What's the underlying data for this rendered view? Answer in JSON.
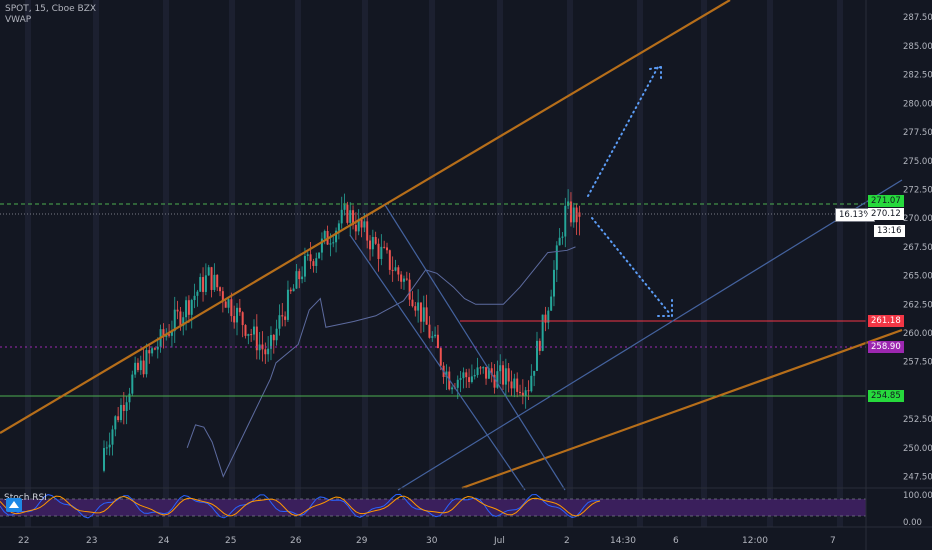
{
  "header": {
    "symbol_line": "SPOT, 15, Cboe BZX",
    "indicator": "VWAP"
  },
  "oscillator": {
    "name": "Stoch RSI",
    "levels": [
      "100.00",
      "0.00"
    ]
  },
  "colors": {
    "background": "#131722",
    "up": "#26a69a",
    "down": "#ef5350",
    "orange_trend": "#b66e1a",
    "blue_trend": "#44629e",
    "green_level": "#4caf50",
    "red_level": "#f23645",
    "purple_level": "#9c27b0"
  },
  "price_axis": {
    "ticks": [
      "287.50",
      "285.00",
      "282.50",
      "280.00",
      "277.50",
      "275.00",
      "272.50",
      "270.00",
      "267.50",
      "265.00",
      "262.50",
      "260.00",
      "257.50",
      "252.50",
      "250.00",
      "247.50"
    ]
  },
  "price_tags": {
    "high": "271.07",
    "last": "270.12",
    "last_pct": "16.13%",
    "countdown": "13:16",
    "resistance": "261.18",
    "vwap_level": "258.90",
    "support": "254.85"
  },
  "time_axis": {
    "labels": [
      "22",
      "23",
      "24",
      "25",
      "26",
      "29",
      "30",
      "Jul",
      "2",
      "14:30",
      "6",
      "12:00",
      "7"
    ]
  },
  "chart_data": {
    "type": "candlestick",
    "y_range": [
      246.5,
      289
    ],
    "levels": [
      {
        "name": "resistance",
        "value": 261.18
      },
      {
        "name": "vwap_level",
        "value": 258.9
      },
      {
        "name": "support",
        "value": 254.85
      },
      {
        "name": "high",
        "value": 271.07
      },
      {
        "name": "last",
        "value": 270.12
      }
    ],
    "vwap_path": [
      [
        30,
        250
      ],
      [
        33,
        252
      ],
      [
        36,
        251.8
      ],
      [
        39,
        250.5
      ],
      [
        43,
        247.5
      ],
      [
        60,
        256
      ],
      [
        62,
        257.4
      ],
      [
        70,
        259
      ],
      [
        74,
        262
      ],
      [
        78,
        263
      ],
      [
        80,
        260.5
      ],
      [
        90,
        261
      ],
      [
        98,
        261.5
      ],
      [
        108,
        262.8
      ],
      [
        116,
        265.5
      ],
      [
        120,
        265.2
      ],
      [
        126,
        264
      ],
      [
        130,
        263
      ],
      [
        134,
        262.5
      ],
      [
        144,
        262.5
      ],
      [
        150,
        264
      ],
      [
        160,
        267
      ],
      [
        167,
        267.2
      ],
      [
        170,
        267.5
      ]
    ],
    "anchor_candles": [
      {
        "i": 0,
        "o": 248,
        "h": 251,
        "l": 247,
        "c": 250
      },
      {
        "i": 10,
        "o": 254,
        "h": 257,
        "l": 253,
        "c": 256
      },
      {
        "i": 37,
        "o": 263,
        "h": 266,
        "l": 261,
        "c": 265
      },
      {
        "i": 58,
        "o": 256,
        "h": 259,
        "l": 254,
        "c": 258
      },
      {
        "i": 62,
        "o": 259,
        "h": 261.5,
        "l": 257.5,
        "c": 261
      },
      {
        "i": 70,
        "o": 264,
        "h": 266.5,
        "l": 262.5,
        "c": 265.5
      },
      {
        "i": 86,
        "o": 267,
        "h": 271,
        "l": 266.5,
        "c": 270.5
      },
      {
        "i": 91,
        "o": 268.5,
        "h": 270.5,
        "l": 266,
        "c": 269
      },
      {
        "i": 108,
        "o": 263,
        "h": 266,
        "l": 262,
        "c": 264
      },
      {
        "i": 122,
        "o": 257,
        "h": 258.5,
        "l": 255.2,
        "c": 256
      },
      {
        "i": 135,
        "o": 257,
        "h": 259,
        "l": 255.5,
        "c": 256.5
      },
      {
        "i": 150,
        "o": 256,
        "h": 257,
        "l": 254.8,
        "c": 255.5
      },
      {
        "i": 156,
        "o": 258,
        "h": 262,
        "l": 257,
        "c": 261.5
      },
      {
        "i": 163,
        "o": 266,
        "h": 271.1,
        "l": 265,
        "c": 270.5
      },
      {
        "i": 168,
        "o": 270.5,
        "h": 271.07,
        "l": 268.5,
        "c": 270.12
      }
    ]
  }
}
